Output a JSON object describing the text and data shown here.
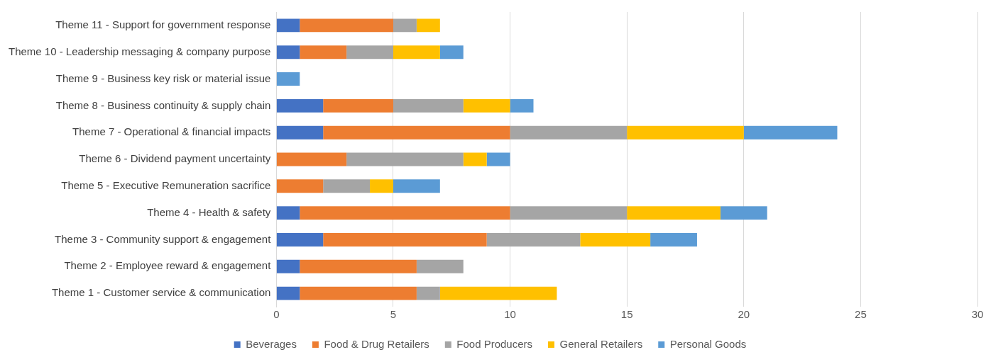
{
  "chart_data": {
    "type": "bar",
    "orientation": "horizontal",
    "stacked": true,
    "categories": [
      "Theme 11 - Support for government response",
      "Theme 10 - Leadership messaging & company purpose",
      "Theme 9 - Business key risk or material issue",
      "Theme 8 - Business continuity & supply chain",
      "Theme 7 - Operational & financial impacts",
      "Theme 6 - Dividend payment uncertainty",
      "Theme 5 - Executive Remuneration sacrifice",
      "Theme 4 - Health & safety",
      "Theme 3 - Community support & engagement",
      "Theme 2 - Employee reward & engagement",
      "Theme 1 - Customer service & communication"
    ],
    "series": [
      {
        "name": "Beverages",
        "color": "#4472c4",
        "values": [
          1,
          1,
          0,
          2,
          2,
          0,
          0,
          1,
          2,
          1,
          1
        ]
      },
      {
        "name": "Food & Drug Retailers",
        "color": "#ed7d31",
        "values": [
          4,
          2,
          0,
          3,
          8,
          3,
          2,
          9,
          7,
          5,
          5
        ]
      },
      {
        "name": "Food Producers",
        "color": "#a5a5a5",
        "values": [
          1,
          2,
          0,
          3,
          5,
          5,
          2,
          5,
          4,
          2,
          1
        ]
      },
      {
        "name": "General Retailers",
        "color": "#ffc000",
        "values": [
          1,
          2,
          0,
          2,
          5,
          1,
          1,
          4,
          3,
          0,
          5
        ]
      },
      {
        "name": "Personal Goods",
        "color": "#5b9bd5",
        "values": [
          0,
          1,
          1,
          1,
          4,
          1,
          2,
          2,
          2,
          0,
          0
        ]
      }
    ],
    "xlim": [
      0,
      30
    ],
    "xticks": [
      0,
      5,
      10,
      15,
      20,
      25,
      30
    ],
    "grid": "x",
    "legend": "bottom"
  }
}
